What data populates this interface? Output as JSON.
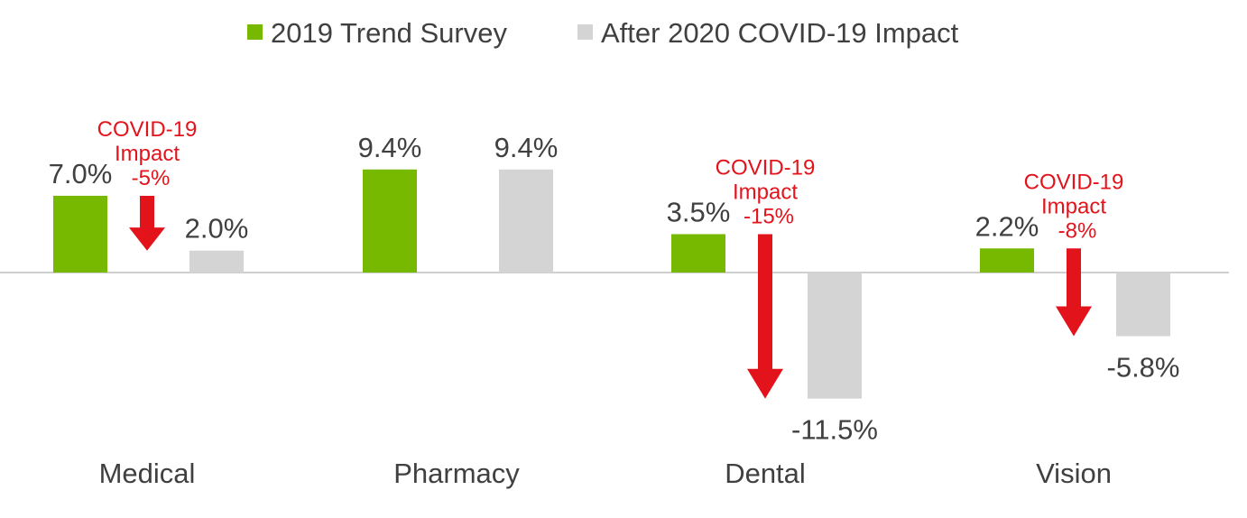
{
  "colors": {
    "series_2019": "#77b900",
    "series_2020": "#d4d4d4",
    "impact": "#e3131b",
    "baseline": "#bfbfbf",
    "text": "#404040"
  },
  "legend": {
    "items": [
      "2019 Trend Survey",
      "After 2020 COVID-19 Impact"
    ]
  },
  "chart_data": {
    "type": "bar",
    "categories": [
      "Medical",
      "Pharmacy",
      "Dental",
      "Vision"
    ],
    "series": [
      {
        "name": "2019 Trend Survey",
        "values": [
          7.0,
          9.4,
          3.5,
          2.2
        ],
        "labels": [
          "7.0%",
          "9.4%",
          "3.5%",
          "2.2%"
        ]
      },
      {
        "name": "After 2020 COVID-19 Impact",
        "values": [
          2.0,
          9.4,
          -11.5,
          -5.8
        ],
        "labels": [
          "2.0%",
          "9.4%",
          "-11.5%",
          "-5.8%"
        ]
      }
    ],
    "annotations": [
      {
        "category": "Medical",
        "lines": [
          "COVID-19",
          "Impact",
          "-5%"
        ],
        "change": -5
      },
      {
        "category": "Dental",
        "lines": [
          "COVID-19",
          "Impact",
          "-15%"
        ],
        "change": -15
      },
      {
        "category": "Vision",
        "lines": [
          "COVID-19",
          "Impact",
          "-8%"
        ],
        "change": -8
      }
    ],
    "legend_position": "top",
    "grid": false
  }
}
